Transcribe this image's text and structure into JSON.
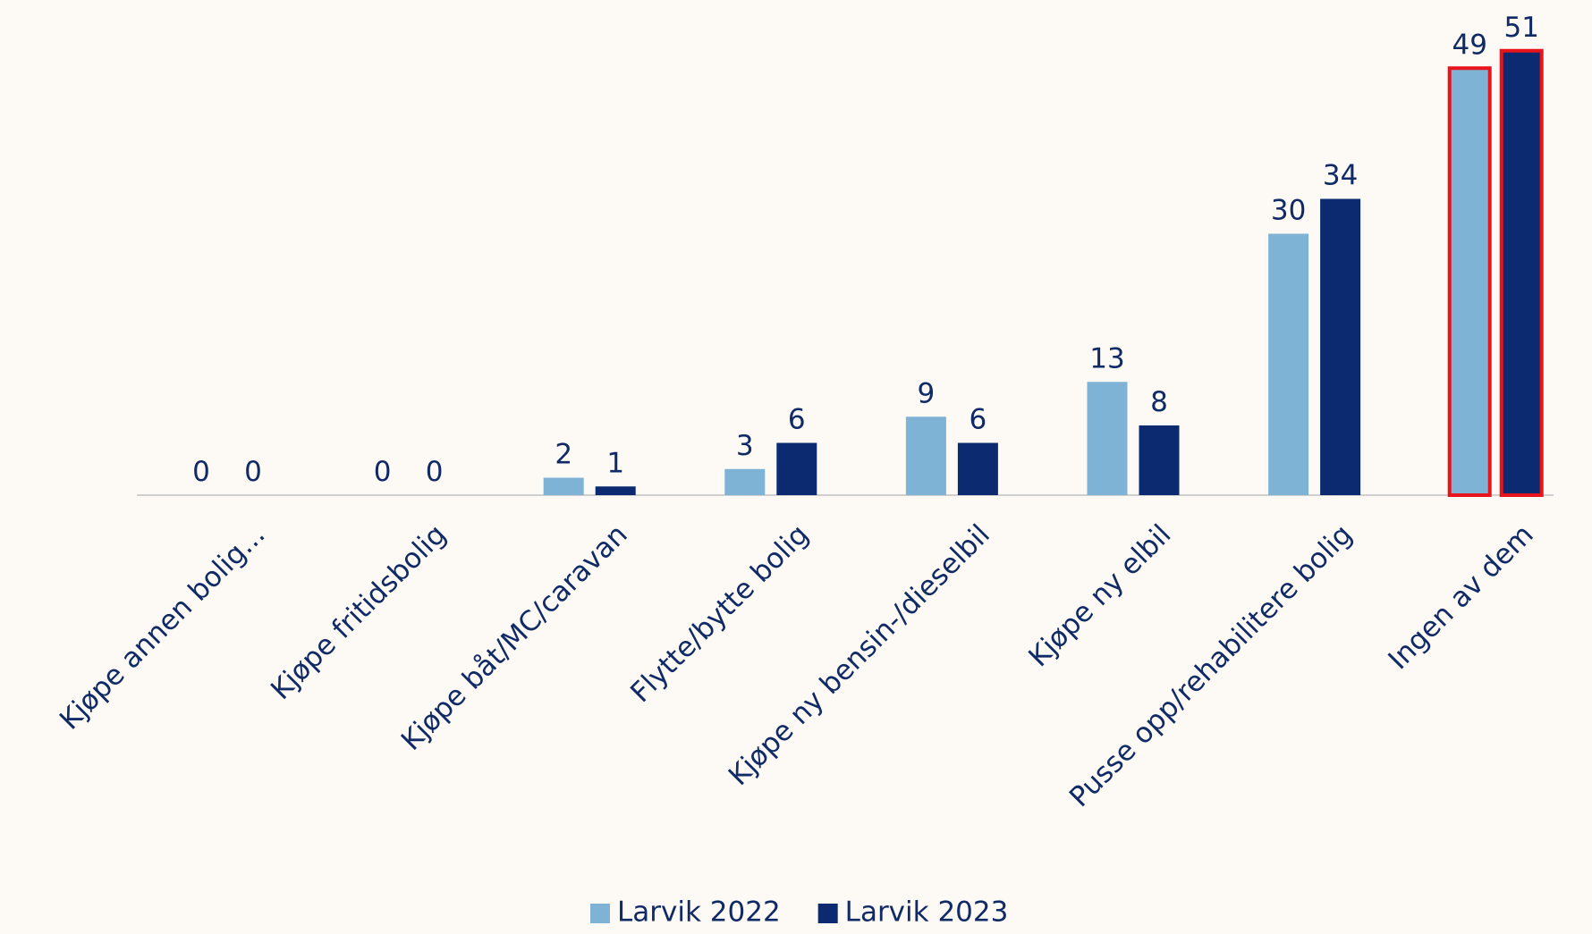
{
  "chart_data": {
    "type": "bar",
    "categories": [
      "Kjøpe annen bolig...",
      "Kjøpe fritidsbolig",
      "Kjøpe båt/MC/caravan",
      "Flytte/bytte bolig",
      "Kjøpe ny bensin-/dieselbil",
      "Kjøpe ny elbil",
      "Pusse opp/rehabilitere bolig",
      "Ingen av dem"
    ],
    "series": [
      {
        "name": "Larvik 2022",
        "color": "#7fb3d5",
        "values": [
          0,
          0,
          2,
          3,
          9,
          13,
          30,
          49
        ]
      },
      {
        "name": "Larvik 2023",
        "color": "#0b2a6f",
        "values": [
          0,
          0,
          1,
          6,
          6,
          8,
          34,
          51
        ]
      }
    ],
    "highlight_index": 7,
    "highlight_color": "#e8141c",
    "legend": "bottom"
  }
}
